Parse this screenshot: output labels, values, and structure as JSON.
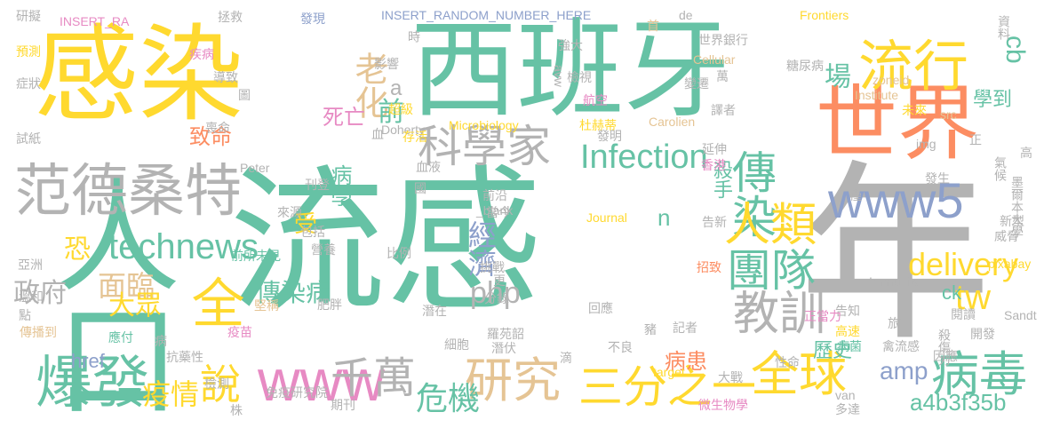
{
  "palette": {
    "teal": "#66c2a5",
    "yellow": "#ffd92f",
    "gray": "#b3b3b3",
    "orange": "#fc8d62",
    "green": "#a6d854",
    "tan": "#e5c494",
    "blue": "#8da0cb",
    "pink": "#e78ac3"
  },
  "words": [
    {
      "text": "流感",
      "color": "teal"
    },
    {
      "text": "年",
      "color": "gray"
    },
    {
      "text": "西班牙",
      "color": "teal"
    },
    {
      "text": "感染",
      "color": "yellow"
    },
    {
      "text": "人口",
      "color": "teal"
    },
    {
      "text": "世界",
      "color": "orange"
    },
    {
      "text": "范德桑特",
      "color": "gray"
    },
    {
      "text": "流行",
      "color": "yellow"
    },
    {
      "text": "科學家",
      "color": "gray"
    },
    {
      "text": "傳染",
      "color": "teal"
    },
    {
      "text": "全球",
      "color": "yellow"
    },
    {
      "text": "爆發",
      "color": "teal"
    },
    {
      "text": "病毒",
      "color": "teal"
    },
    {
      "text": "人類",
      "color": "yellow"
    },
    {
      "text": "www5",
      "color": "blue"
    },
    {
      "text": "technews",
      "color": "teal"
    },
    {
      "text": "全",
      "color": "yellow"
    },
    {
      "text": "研究",
      "color": "tan"
    },
    {
      "text": "教訓",
      "color": "gray"
    },
    {
      "text": "團隊",
      "color": "teal"
    },
    {
      "text": "三分之一",
      "color": "yellow"
    },
    {
      "text": "www",
      "color": "pink"
    },
    {
      "text": "說",
      "color": "yellow"
    },
    {
      "text": "千萬",
      "color": "gray"
    },
    {
      "text": "delivery",
      "color": "yellow"
    },
    {
      "text": "Infection",
      "color": "teal"
    },
    {
      "text": "tw",
      "color": "yellow"
    },
    {
      "text": "cb",
      "color": "teal"
    },
    {
      "text": "老化",
      "color": "tan"
    },
    {
      "text": "前",
      "color": "teal"
    },
    {
      "text": "場",
      "color": "teal"
    },
    {
      "text": "php",
      "color": "gray"
    },
    {
      "text": "經濟",
      "color": "blue"
    },
    {
      "text": "危機",
      "color": "teal"
    },
    {
      "text": "疫情",
      "color": "yellow"
    },
    {
      "text": "面臨",
      "color": "tan"
    },
    {
      "text": "政府",
      "color": "gray"
    },
    {
      "text": "大眾",
      "color": "yellow"
    },
    {
      "text": "傳染病",
      "color": "teal"
    },
    {
      "text": "amp",
      "color": "blue"
    },
    {
      "text": "a4b3f35b",
      "color": "teal"
    },
    {
      "text": "歷史",
      "color": "teal"
    },
    {
      "text": "病患",
      "color": "orange"
    },
    {
      "text": "殺手",
      "color": "teal"
    },
    {
      "text": "學到",
      "color": "teal"
    },
    {
      "text": "恐",
      "color": "yellow"
    },
    {
      "text": "致命",
      "color": "orange"
    },
    {
      "text": "病學",
      "color": "teal"
    },
    {
      "text": "死亡",
      "color": "pink"
    },
    {
      "text": "ck",
      "color": "teal"
    },
    {
      "text": "href",
      "color": "blue"
    },
    {
      "text": "受",
      "color": "yellow"
    },
    {
      "text": "n",
      "color": "teal"
    },
    {
      "text": "a",
      "color": "gray"
    },
    {
      "text": "INSERT_RANDOM_NUMBER_HERE",
      "color": "blue"
    },
    {
      "text": "INSERT_RA",
      "color": "pink"
    },
    {
      "text": "Frontiers",
      "color": "yellow"
    },
    {
      "text": "Microbiology",
      "color": "yellow"
    },
    {
      "text": "Cellular",
      "color": "tan"
    },
    {
      "text": "Institute",
      "color": "tan"
    },
    {
      "text": "zoneid",
      "color": "tan"
    },
    {
      "text": "Doherty",
      "color": "gray"
    },
    {
      "text": "Carolien",
      "color": "tan"
    },
    {
      "text": "Peter",
      "color": "gray"
    },
    {
      "text": "Journal",
      "color": "yellow"
    },
    {
      "text": "_blank",
      "color": "gray"
    },
    {
      "text": "Immunity",
      "color": "gray"
    },
    {
      "text": "pixabay",
      "color": "yellow"
    },
    {
      "text": "Sandt",
      "color": "gray"
    },
    {
      "text": "target",
      "color": "yellow"
    },
    {
      "text": "van",
      "color": "gray"
    },
    {
      "text": "src",
      "color": "tan"
    },
    {
      "text": "img",
      "color": "gray"
    },
    {
      "text": "avw",
      "color": "gray"
    },
    {
      "text": "de",
      "color": "gray"
    },
    {
      "text": "研擬",
      "color": "gray"
    },
    {
      "text": "預測",
      "color": "yellow"
    },
    {
      "text": "症狀",
      "color": "gray"
    },
    {
      "text": "試紙",
      "color": "gray"
    },
    {
      "text": "拯救",
      "color": "gray"
    },
    {
      "text": "疾病",
      "color": "pink"
    },
    {
      "text": "導致",
      "color": "gray"
    },
    {
      "text": "喪命",
      "color": "gray"
    },
    {
      "text": "發現",
      "color": "blue"
    },
    {
      "text": "影響",
      "color": "gray"
    },
    {
      "text": "超級",
      "color": "yellow"
    },
    {
      "text": "血",
      "color": "gray"
    },
    {
      "text": "存活",
      "color": "yellow"
    },
    {
      "text": "血液",
      "color": "gray"
    },
    {
      "text": "國",
      "color": "gray"
    },
    {
      "text": "首",
      "color": "tan"
    },
    {
      "text": "強大",
      "color": "gray"
    },
    {
      "text": "檢視",
      "color": "gray"
    },
    {
      "text": "航空",
      "color": "pink"
    },
    {
      "text": "杜赫蒂",
      "color": "yellow"
    },
    {
      "text": "發明",
      "color": "gray"
    },
    {
      "text": "世界銀行",
      "color": "gray"
    },
    {
      "text": "糖尿病",
      "color": "gray"
    },
    {
      "text": "變遷",
      "color": "gray"
    },
    {
      "text": "萬",
      "color": "gray"
    },
    {
      "text": "譯者",
      "color": "gray"
    },
    {
      "text": "未來",
      "color": "yellow"
    },
    {
      "text": "資料",
      "color": "gray"
    },
    {
      "text": "正",
      "color": "gray"
    },
    {
      "text": "高",
      "color": "gray"
    },
    {
      "text": "氣候",
      "color": "gray"
    },
    {
      "text": "延伸",
      "color": "gray"
    },
    {
      "text": "香港",
      "color": "pink"
    },
    {
      "text": "發生",
      "color": "gray"
    },
    {
      "text": "墨爾本大學",
      "color": "gray"
    },
    {
      "text": "僅",
      "color": "gray"
    },
    {
      "text": "前沿",
      "color": "gray"
    },
    {
      "text": "當今",
      "color": "gray"
    },
    {
      "text": "告新",
      "color": "gray"
    },
    {
      "text": "威脅",
      "color": "gray"
    },
    {
      "text": "新型",
      "color": "gray"
    },
    {
      "text": "招致",
      "color": "orange"
    },
    {
      "text": "刊登",
      "color": "gray"
    },
    {
      "text": "來源",
      "color": "gray"
    },
    {
      "text": "包括",
      "color": "gray"
    },
    {
      "text": "營養",
      "color": "gray"
    },
    {
      "text": "比例",
      "color": "gray"
    },
    {
      "text": "挑戰",
      "color": "gray"
    },
    {
      "text": "更",
      "color": "gray"
    },
    {
      "text": "分錄",
      "color": "gray"
    },
    {
      "text": "回應",
      "color": "gray"
    },
    {
      "text": "告知",
      "color": "gray"
    },
    {
      "text": "旅行",
      "color": "gray"
    },
    {
      "text": "高速",
      "color": "yellow"
    },
    {
      "text": "閱讀",
      "color": "gray"
    },
    {
      "text": "開發",
      "color": "gray"
    },
    {
      "text": "亞洲",
      "color": "gray"
    },
    {
      "text": "前所未見",
      "color": "teal"
    },
    {
      "text": "點",
      "color": "gray"
    },
    {
      "text": "溫和",
      "color": "gray"
    },
    {
      "text": "堅稱",
      "color": "tan"
    },
    {
      "text": "肥胖",
      "color": "gray"
    },
    {
      "text": "潛在",
      "color": "gray"
    },
    {
      "text": "羅苑韶",
      "color": "gray"
    },
    {
      "text": "豬",
      "color": "gray"
    },
    {
      "text": "正當力",
      "color": "pink"
    },
    {
      "text": "記者",
      "color": "gray"
    },
    {
      "text": "應付",
      "color": "teal"
    },
    {
      "text": "傳播到",
      "color": "tan"
    },
    {
      "text": "病",
      "color": "gray"
    },
    {
      "text": "抗藥性",
      "color": "gray"
    },
    {
      "text": "檢測",
      "color": "gray"
    },
    {
      "text": "細胞",
      "color": "gray"
    },
    {
      "text": "潛伏",
      "color": "gray"
    },
    {
      "text": "滴",
      "color": "gray"
    },
    {
      "text": "不良",
      "color": "gray"
    },
    {
      "text": "病菌",
      "color": "teal"
    },
    {
      "text": "禽流感",
      "color": "gray"
    },
    {
      "text": "因應",
      "color": "gray"
    },
    {
      "text": "性命",
      "color": "gray"
    },
    {
      "text": "大戰",
      "color": "gray"
    },
    {
      "text": "殺傷力",
      "color": "gray"
    },
    {
      "text": "免疫研究院",
      "color": "gray"
    },
    {
      "text": "株",
      "color": "gray"
    },
    {
      "text": "微生物學",
      "color": "pink"
    },
    {
      "text": "多達",
      "color": "gray"
    },
    {
      "text": "期刊",
      "color": "gray"
    },
    {
      "text": "疫苗",
      "color": "pink"
    },
    {
      "text": "時",
      "color": "gray"
    },
    {
      "text": "圖",
      "color": "gray"
    },
    {
      "text": "億",
      "color": "gray"
    },
    {
      "text": "日",
      "color": "gray"
    }
  ]
}
